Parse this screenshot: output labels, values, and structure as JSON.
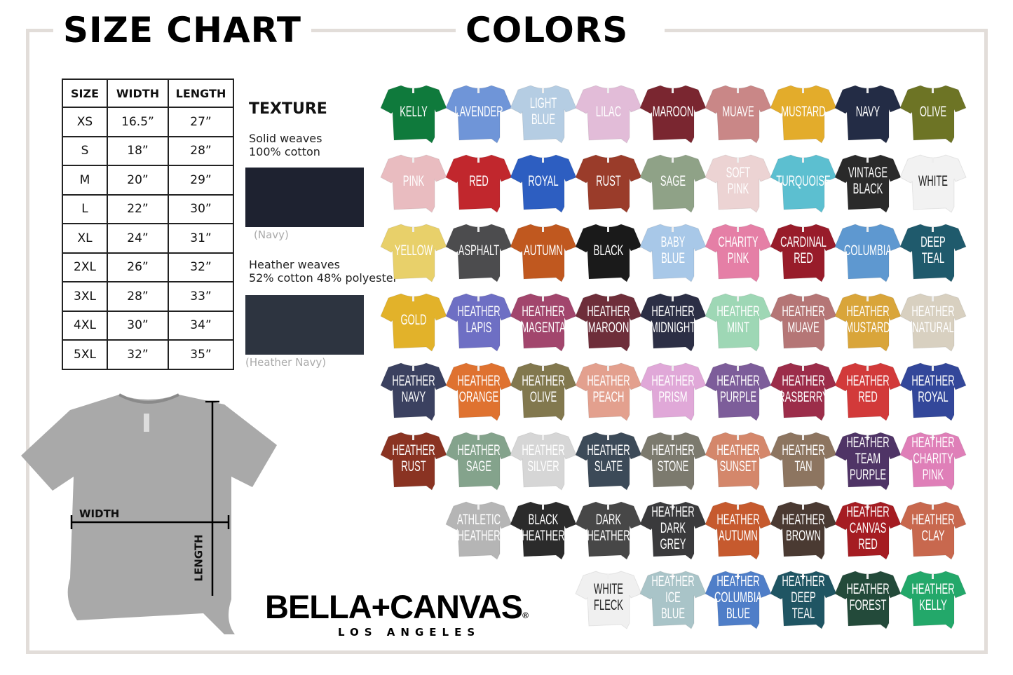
{
  "headers": {
    "size_chart": "SIZE CHART",
    "colors": "COLORS"
  },
  "size_table": {
    "columns": [
      "SIZE",
      "WIDTH",
      "LENGTH"
    ],
    "rows": [
      [
        "XS",
        "16.5”",
        "27”"
      ],
      [
        "S",
        "18”",
        "28”"
      ],
      [
        "M",
        "20”",
        "29”"
      ],
      [
        "L",
        "22”",
        "30”"
      ],
      [
        "XL",
        "24”",
        "31”"
      ],
      [
        "2XL",
        "26”",
        "32”"
      ],
      [
        "3XL",
        "28”",
        "33”"
      ],
      [
        "4XL",
        "30”",
        "34”"
      ],
      [
        "5XL",
        "32”",
        "35”"
      ]
    ]
  },
  "texture": {
    "title": "TEXTURE",
    "solid": {
      "line1": "Solid weaves",
      "line2": "100% cotton",
      "caption": "(Navy)",
      "color": "#1e2230"
    },
    "heather": {
      "line1": "Heather weaves",
      "line2": "52% cotton 48% polyester",
      "caption": "(Heather Navy)",
      "color": "#2d3440"
    }
  },
  "diagram": {
    "width_label": "WIDTH",
    "length_label": "LENGTH",
    "shirt_color": "#a9a9a9"
  },
  "brand": {
    "name": "BELLA+CANVAS",
    "reg": "®",
    "sub": "LOS ANGELES"
  },
  "color_rows": [
    {
      "start": 0,
      "items": [
        [
          "KELLY",
          "#0f7a3c"
        ],
        [
          "LAVENDER",
          "#6f95d8"
        ],
        [
          "LIGHT BLUE",
          "#b5cde3"
        ],
        [
          "LILAC",
          "#e2bcd8"
        ],
        [
          "MAROON",
          "#7a2630"
        ],
        [
          "MUAVE",
          "#c98787"
        ],
        [
          "MUSTARD",
          "#e3ac2b"
        ],
        [
          "NAVY",
          "#232c45"
        ],
        [
          "OLIVE",
          "#6d7425"
        ]
      ]
    },
    {
      "start": 0,
      "items": [
        [
          "PINK",
          "#e9bcc0"
        ],
        [
          "RED",
          "#c1272d"
        ],
        [
          "ROYAL",
          "#2d5ec1"
        ],
        [
          "RUST",
          "#9a3c2a"
        ],
        [
          "SAGE",
          "#8fa287"
        ],
        [
          "SOFT PINK",
          "#ecd3d3"
        ],
        [
          "TURQUOISE",
          "#5cbfd0"
        ],
        [
          "VINTAGE BLACK",
          "#2a2a2a"
        ],
        [
          "WHITE",
          "#f2f2f2"
        ]
      ]
    },
    {
      "start": 0,
      "items": [
        [
          "YELLOW",
          "#e8d06a"
        ],
        [
          "ASPHALT",
          "#4c4c4e"
        ],
        [
          "AUTUMN",
          "#c0581f"
        ],
        [
          "BLACK",
          "#1a1a1a"
        ],
        [
          "BABY BLUE",
          "#a8c8e8"
        ],
        [
          "CHARITY PINK",
          "#e57fa6"
        ],
        [
          "CARDINAL RED",
          "#981c2a"
        ],
        [
          "COLUMBIA",
          "#5e98d0"
        ],
        [
          "DEEP TEAL",
          "#1f5a6c"
        ]
      ]
    },
    {
      "start": 0,
      "items": [
        [
          "GOLD",
          "#e2b22a"
        ],
        [
          "HEATHER LAPIS",
          "#6e6fc4"
        ],
        [
          "HEATHER MAGENTA",
          "#a2466d"
        ],
        [
          "HEATHER MAROON",
          "#6e2e3a"
        ],
        [
          "HEATHER MIDNIGHT",
          "#2c2f45"
        ],
        [
          "HEATHER MINT",
          "#9ed7b5"
        ],
        [
          "HEATHER MUAVE",
          "#b57676"
        ],
        [
          "HEATHER MUSTARD",
          "#d9a53a"
        ],
        [
          "HEATHER NATURAL",
          "#d8d0c0"
        ]
      ]
    },
    {
      "start": 0,
      "items": [
        [
          "HEATHER NAVY",
          "#3b4160"
        ],
        [
          "HEATHER ORANGE",
          "#df7230"
        ],
        [
          "HEATHER OLIVE",
          "#82784e"
        ],
        [
          "HEATHER PEACH",
          "#e3a08e"
        ],
        [
          "HEATHER PRISM",
          "#e0a8d8"
        ],
        [
          "HEATHER PURPLE",
          "#7d5d9a"
        ],
        [
          "HEATHER RASBERRY",
          "#9c2d4a"
        ],
        [
          "HEATHER RED",
          "#d23a3a"
        ],
        [
          "HEATHER ROYAL",
          "#33479a"
        ]
      ]
    },
    {
      "start": 0,
      "items": [
        [
          "HEATHER RUST",
          "#8a3322"
        ],
        [
          "HEATHER SAGE",
          "#84a38c"
        ],
        [
          "HEATHER SILVER",
          "#d6d6d6"
        ],
        [
          "HEATHER SLATE",
          "#3c4a58"
        ],
        [
          "HEATHER STONE",
          "#7c7a6e"
        ],
        [
          "HEATHER SUNSET",
          "#d4876b"
        ],
        [
          "HEATHER TAN",
          "#8d7560"
        ],
        [
          "HEATHER TEAM PURPLE",
          "#4f3466"
        ],
        [
          "HEATHER CHARITY PINK",
          "#df7fb8"
        ]
      ]
    },
    {
      "start": 1,
      "items": [
        [
          "ATHLETIC HEATHER",
          "#b5b5b5"
        ],
        [
          "BLACK HEATHER",
          "#2b2b2b"
        ],
        [
          "DARK HEATHER",
          "#474747"
        ],
        [
          "HEATHER DARK GREY",
          "#3a3a3c"
        ],
        [
          "HEATHER AUTUMN",
          "#c65a2e"
        ],
        [
          "HEATHER BROWN",
          "#4a3a32"
        ],
        [
          "HEATHER CANVAS RED",
          "#a51c22"
        ],
        [
          "HEATHER CLAY",
          "#c8684e"
        ]
      ]
    },
    {
      "start": 3,
      "items": [
        [
          "WHITE FLECK",
          "#f0f0f0"
        ],
        [
          "HEATHER ICE BLUE",
          "#a9c4c8"
        ],
        [
          "HEATHER COLUMBIA BLUE",
          "#4f7ec8"
        ],
        [
          "HEATHER DEEP TEAL",
          "#1f5563"
        ],
        [
          "HEATHER FOREST",
          "#234a3a"
        ],
        [
          "HEATHER KELLY",
          "#23a86a"
        ]
      ]
    }
  ]
}
